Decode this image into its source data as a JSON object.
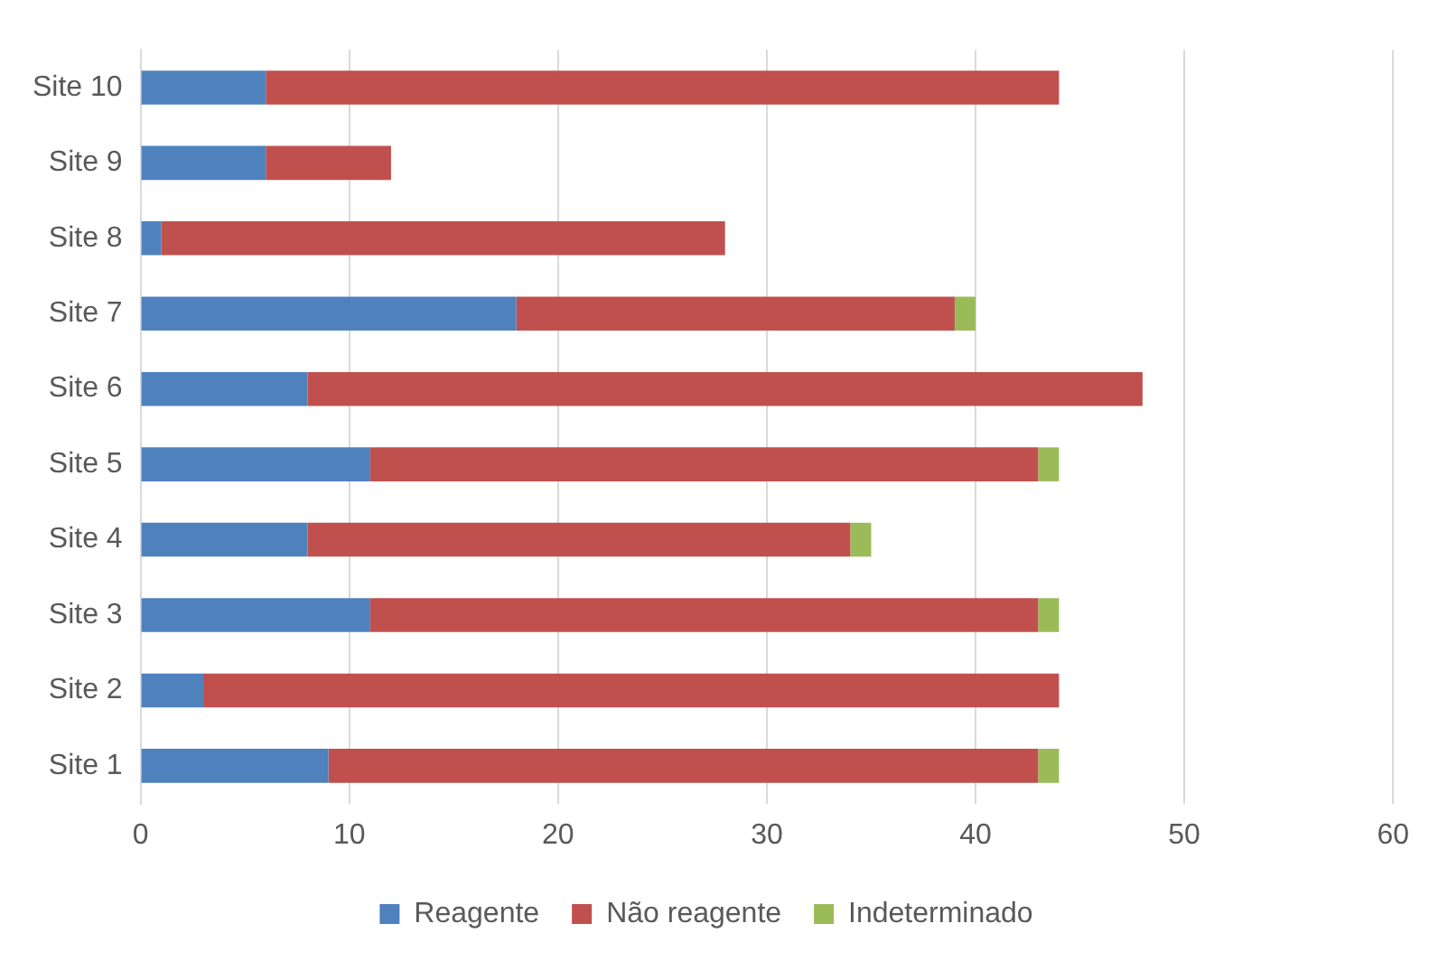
{
  "chart_data": {
    "type": "bar",
    "orientation": "horizontal",
    "stacked": true,
    "categories": [
      "Site 10",
      "Site 9",
      "Site 8",
      "Site 7",
      "Site 6",
      "Site 5",
      "Site 4",
      "Site 3",
      "Site 2",
      "Site 1"
    ],
    "series": [
      {
        "name": "Reagente",
        "color": "#4f81bd",
        "values": [
          6,
          6,
          1,
          18,
          8,
          11,
          8,
          11,
          3,
          9
        ]
      },
      {
        "name": "Não reagente",
        "color": "#c0504d",
        "values": [
          38,
          6,
          27,
          21,
          40,
          32,
          26,
          32,
          41,
          34
        ]
      },
      {
        "name": "Indeterminado",
        "color": "#9bbb59",
        "values": [
          null,
          null,
          null,
          1,
          null,
          1,
          1,
          1,
          null,
          1
        ]
      }
    ],
    "xlim": [
      0,
      60
    ],
    "xticks": [
      0,
      10,
      20,
      30,
      40,
      50,
      60
    ],
    "grid": "x",
    "legend": "bottom"
  }
}
